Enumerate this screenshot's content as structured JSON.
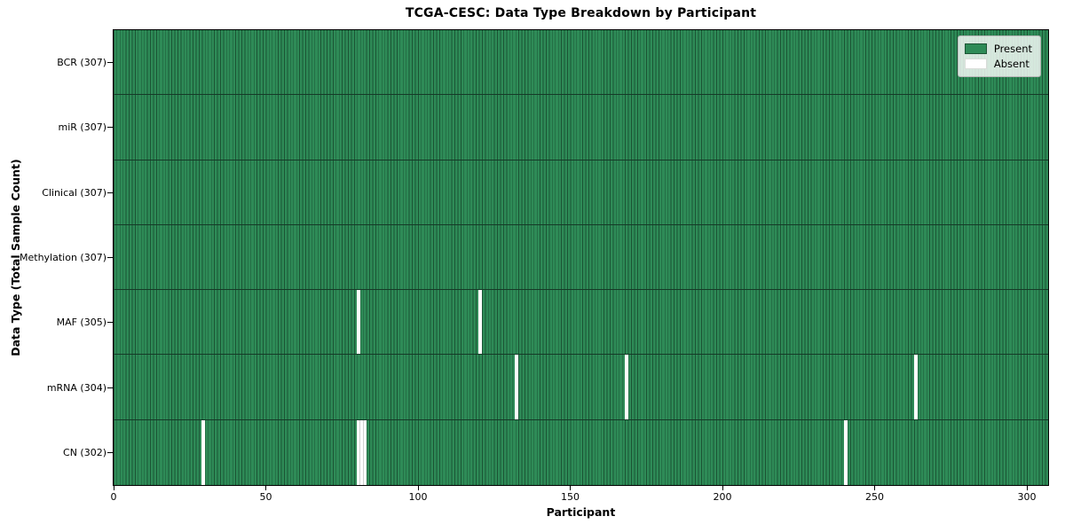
{
  "figure": {
    "background": "#ffffff"
  },
  "chart_data": {
    "type": "heatmap",
    "title": "TCGA-CESC: Data Type Breakdown by Participant",
    "xlabel": "Participant",
    "ylabel": "Data Type (Total Sample Count)",
    "x_ticks": [
      0,
      50,
      100,
      150,
      200,
      250,
      300
    ],
    "x_range": [
      0,
      307
    ],
    "n_participants": 307,
    "grid": false,
    "rows": [
      {
        "name": "BCR",
        "label": "BCR (307)",
        "present_count": 307,
        "absent_participants": []
      },
      {
        "name": "miR",
        "label": "miR (307)",
        "present_count": 307,
        "absent_participants": []
      },
      {
        "name": "Clinical",
        "label": "Clinical (307)",
        "present_count": 307,
        "absent_participants": []
      },
      {
        "name": "Methylation",
        "label": "Methylation (307)",
        "present_count": 307,
        "absent_participants": []
      },
      {
        "name": "MAF",
        "label": "MAF (305)",
        "present_count": 305,
        "absent_participants": [
          80,
          120
        ]
      },
      {
        "name": "mRNA",
        "label": "mRNA (304)",
        "present_count": 304,
        "absent_participants": [
          132,
          168,
          263
        ]
      },
      {
        "name": "CN",
        "label": "CN (302)",
        "present_count": 302,
        "absent_participants": [
          29,
          80,
          81,
          82,
          240
        ]
      }
    ],
    "legend": {
      "position": "upper right",
      "entries": [
        {
          "label": "Present",
          "color": "#2e8b57"
        },
        {
          "label": "Absent",
          "color": "#ffffff"
        }
      ]
    },
    "colors": {
      "present": "#2e8b57",
      "present_edge": "#1b5434",
      "row_separator": "#153a27",
      "absent": "#ffffff",
      "absent_edge": "#cfcfcf",
      "axis": "#000000",
      "legend_background": "rgba(255,255,255,0.8)",
      "legend_border": "#b5b5b5"
    }
  }
}
